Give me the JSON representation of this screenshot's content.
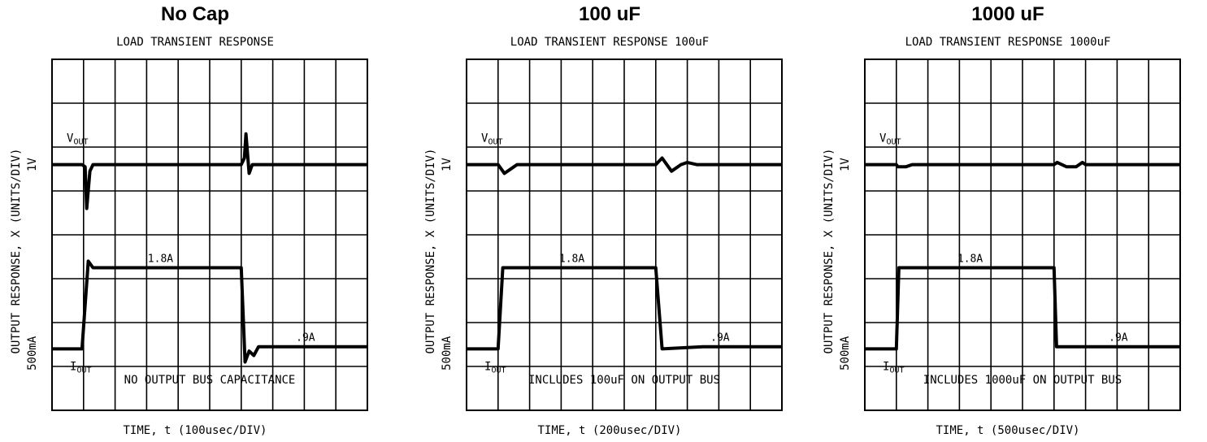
{
  "chart_data": [
    {
      "type": "line",
      "title": "No Cap",
      "subtitle": "LOAD TRANSIENT RESPONSE",
      "xlabel": "TIME, t (100usec/DIV)",
      "ylabel": "OUTPUT RESPONSE, X (UNITS/DIV)",
      "y_scale_labels": [
        "1V",
        "500mA"
      ],
      "annotation": "NO OUTPUT BUS CAPACITANCE",
      "divisions": {
        "x": 10,
        "y": 8
      },
      "grid": true,
      "series": [
        {
          "name": "VOUT",
          "label": "V",
          "label_sub": "OUT",
          "points": [
            [
              0.0,
              5.6
            ],
            [
              0.95,
              5.6
            ],
            [
              1.05,
              5.55
            ],
            [
              1.1,
              4.6
            ],
            [
              1.2,
              5.45
            ],
            [
              1.3,
              5.6
            ],
            [
              6.0,
              5.6
            ],
            [
              6.1,
              5.75
            ],
            [
              6.15,
              6.3
            ],
            [
              6.25,
              5.4
            ],
            [
              6.35,
              5.6
            ],
            [
              10.0,
              5.6
            ]
          ]
        },
        {
          "name": "IOUT",
          "label": "I",
          "label_sub": "OUT",
          "points": [
            [
              0.0,
              1.4
            ],
            [
              0.95,
              1.4
            ],
            [
              1.15,
              3.4
            ],
            [
              1.3,
              3.25
            ],
            [
              6.0,
              3.25
            ],
            [
              6.12,
              1.1
            ],
            [
              6.25,
              1.35
            ],
            [
              6.4,
              1.25
            ],
            [
              6.55,
              1.45
            ],
            [
              10.0,
              1.45
            ]
          ]
        }
      ],
      "annotations": [
        {
          "text": "1.8A",
          "x": 3.5,
          "y": 3.25
        },
        {
          "text": ".9A",
          "x": 8.2,
          "y": 1.45
        }
      ]
    },
    {
      "type": "line",
      "title": "100 uF",
      "subtitle": "LOAD TRANSIENT RESPONSE 100uF",
      "xlabel": "TIME, t (200usec/DIV)",
      "ylabel": "OUTPUT RESPONSE, X (UNITS/DIV)",
      "y_scale_labels": [
        "1V",
        "500mA"
      ],
      "annotation": "INCLUDES 100uF ON OUTPUT BUS",
      "divisions": {
        "x": 10,
        "y": 8
      },
      "grid": true,
      "series": [
        {
          "name": "VOUT",
          "label": "V",
          "label_sub": "OUT",
          "points": [
            [
              0.0,
              5.6
            ],
            [
              1.0,
              5.6
            ],
            [
              1.2,
              5.4
            ],
            [
              1.5,
              5.55
            ],
            [
              1.6,
              5.6
            ],
            [
              6.0,
              5.6
            ],
            [
              6.2,
              5.75
            ],
            [
              6.5,
              5.45
            ],
            [
              6.8,
              5.6
            ],
            [
              7.0,
              5.65
            ],
            [
              7.3,
              5.6
            ],
            [
              10.0,
              5.6
            ]
          ]
        },
        {
          "name": "IOUT",
          "label": "I",
          "label_sub": "OUT",
          "points": [
            [
              0.0,
              1.4
            ],
            [
              1.0,
              1.4
            ],
            [
              1.15,
              3.25
            ],
            [
              6.0,
              3.25
            ],
            [
              6.2,
              1.4
            ],
            [
              7.5,
              1.45
            ],
            [
              10.0,
              1.45
            ]
          ]
        }
      ],
      "annotations": [
        {
          "text": "1.8A",
          "x": 3.4,
          "y": 3.25
        },
        {
          "text": ".9A",
          "x": 8.2,
          "y": 1.45
        }
      ]
    },
    {
      "type": "line",
      "title": "1000 uF",
      "subtitle": "LOAD TRANSIENT RESPONSE 1000uF",
      "xlabel": "TIME, t (500usec/DIV)",
      "ylabel": "OUTPUT RESPONSE, X (UNITS/DIV)",
      "y_scale_labels": [
        "1V",
        "500mA"
      ],
      "annotation": "INCLUDES 1000uF ON OUTPUT BUS",
      "divisions": {
        "x": 10,
        "y": 8
      },
      "grid": true,
      "series": [
        {
          "name": "VOUT",
          "label": "V",
          "label_sub": "OUT",
          "points": [
            [
              0.0,
              5.6
            ],
            [
              1.0,
              5.6
            ],
            [
              1.05,
              5.55
            ],
            [
              1.3,
              5.55
            ],
            [
              1.5,
              5.6
            ],
            [
              6.0,
              5.6
            ],
            [
              6.1,
              5.65
            ],
            [
              6.4,
              5.55
            ],
            [
              6.7,
              5.55
            ],
            [
              6.9,
              5.65
            ],
            [
              7.0,
              5.6
            ],
            [
              10.0,
              5.6
            ]
          ]
        },
        {
          "name": "IOUT",
          "label": "I",
          "label_sub": "OUT",
          "points": [
            [
              0.0,
              1.4
            ],
            [
              1.0,
              1.4
            ],
            [
              1.08,
              3.25
            ],
            [
              6.0,
              3.25
            ],
            [
              6.08,
              1.45
            ],
            [
              10.0,
              1.45
            ]
          ]
        }
      ],
      "annotations": [
        {
          "text": "1.8A",
          "x": 3.4,
          "y": 3.25
        },
        {
          "text": ".9A",
          "x": 8.2,
          "y": 1.45
        }
      ]
    }
  ]
}
